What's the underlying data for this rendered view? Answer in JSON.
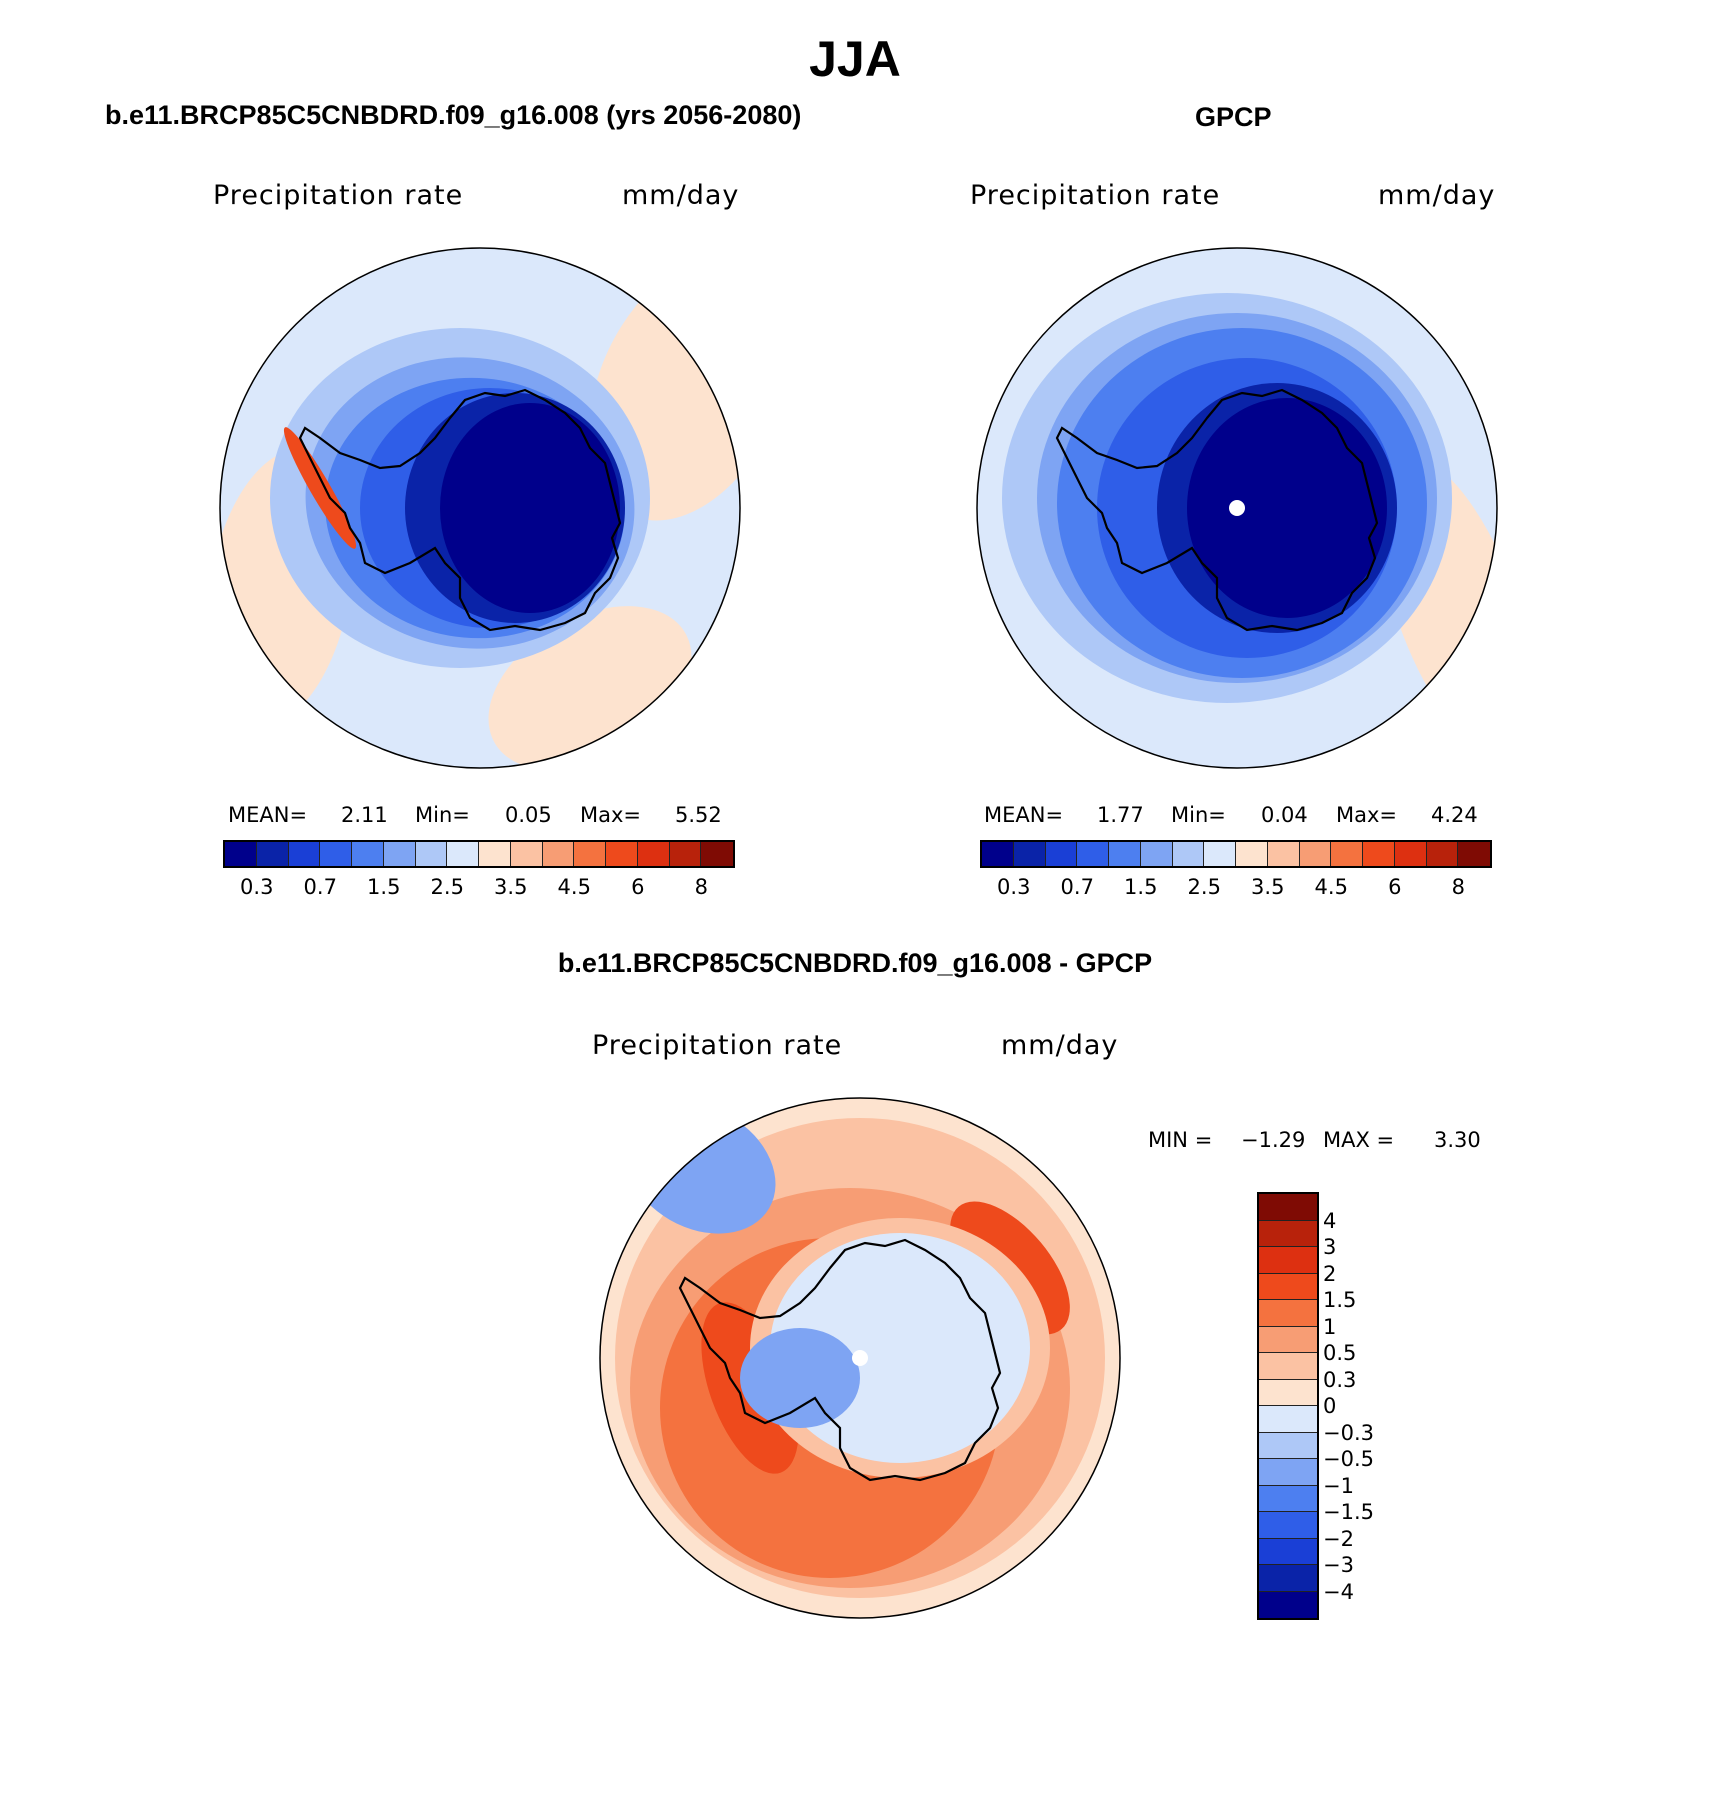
{
  "season_title": "JJA",
  "panels": [
    {
      "id": "model",
      "title": "b.e11.BRCP85C5CNBDRD.f09_g16.008 (yrs 2056-2080)",
      "field_name": "Precipitation rate",
      "units": "mm/day",
      "stats": {
        "mean_label": "MEAN=",
        "mean": "2.11",
        "min_label": "Min=",
        "min": "0.05",
        "max_label": "Max=",
        "max": "5.52"
      },
      "colorbar_tick_labels": [
        "0.3",
        "0.7",
        "1.5",
        "2.5",
        "3.5",
        "4.5",
        "6",
        "8"
      ],
      "fill_pattern": "model"
    },
    {
      "id": "obs",
      "title": "GPCP",
      "field_name": "Precipitation rate",
      "units": "mm/day",
      "stats": {
        "mean_label": "MEAN=",
        "mean": "1.77",
        "min_label": "Min=",
        "min": "0.04",
        "max_label": "Max=",
        "max": "4.24"
      },
      "colorbar_tick_labels": [
        "0.3",
        "0.7",
        "1.5",
        "2.5",
        "3.5",
        "4.5",
        "6",
        "8"
      ],
      "fill_pattern": "obs"
    }
  ],
  "diff_panel": {
    "title": "b.e11.BRCP85C5CNBDRD.f09_g16.008 - GPCP",
    "field_name": "Precipitation rate",
    "units": "mm/day",
    "stats": {
      "min_label": "MIN =",
      "min": "−1.29",
      "max_label": "MAX =",
      "max": "3.30"
    },
    "colorbar_tick_labels": [
      "4",
      "3",
      "2",
      "1.5",
      "1",
      "0.5",
      "0.3",
      "0",
      "−0.3",
      "−0.5",
      "−1",
      "−1.5",
      "−2",
      "−3",
      "−4"
    ]
  },
  "colors": {
    "abs_scale": [
      "#00008b",
      "#0a23a8",
      "#1a3fd6",
      "#2f5ee8",
      "#4d7ff0",
      "#7ea4f3",
      "#aec8f7",
      "#dbe8fb",
      "#fde3cf",
      "#fbc2a3",
      "#f79d74",
      "#f4723f",
      "#ee4a1c",
      "#dd3011",
      "#b8220b",
      "#7f0b04"
    ],
    "diff_scale": [
      "#7f0b04",
      "#b8220b",
      "#dd3011",
      "#ee4a1c",
      "#f4723f",
      "#f79d74",
      "#fbc2a3",
      "#fde3cf",
      "#dbe8fb",
      "#aec8f7",
      "#7ea4f3",
      "#4d7ff0",
      "#2f5ee8",
      "#1a3fd6",
      "#0a23a8",
      "#00008b"
    ],
    "coastline": "#000000",
    "pole_marker": "#ffffff"
  }
}
